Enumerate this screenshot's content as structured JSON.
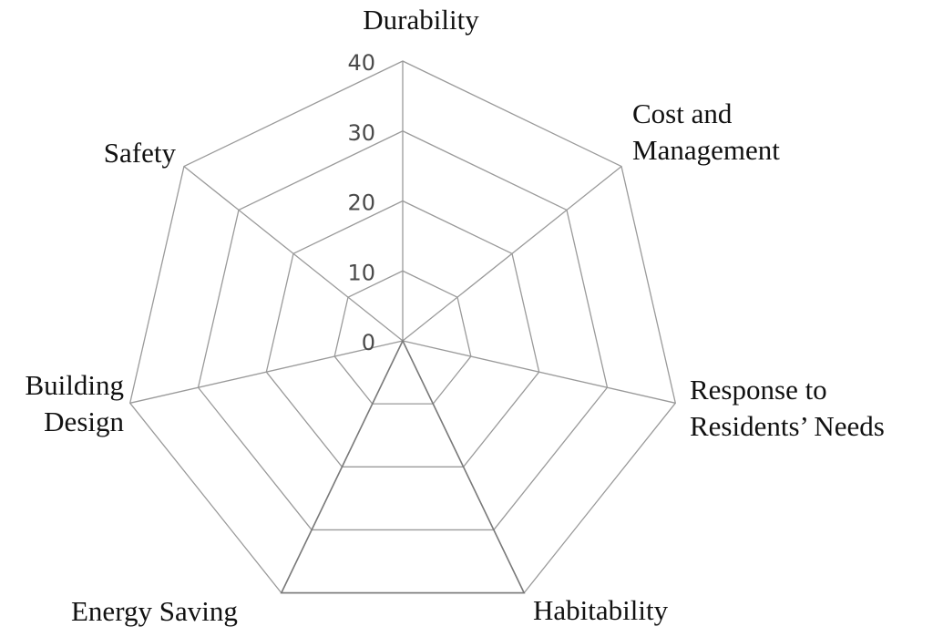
{
  "chart_data": {
    "type": "radar",
    "title": "",
    "axes": [
      {
        "lines": [
          "Durability"
        ]
      },
      {
        "lines": [
          "Cost and",
          "Management"
        ]
      },
      {
        "lines": [
          "Response to",
          "Residents’ Needs"
        ]
      },
      {
        "lines": [
          "Habitability"
        ]
      },
      {
        "lines": [
          "Energy Saving"
        ]
      },
      {
        "lines": [
          "Building",
          "Design"
        ]
      },
      {
        "lines": [
          "Safety"
        ]
      }
    ],
    "r_range": [
      0,
      40
    ],
    "r_ticks": [
      "0",
      "10",
      "20",
      "30",
      "40"
    ],
    "series": [
      {
        "values": [
          0,
          0,
          0,
          40,
          40,
          0,
          0
        ]
      }
    ],
    "colors": {
      "grid": "#9a9a9a",
      "text": "#111111",
      "tick_text": "#4a4a4a"
    }
  }
}
